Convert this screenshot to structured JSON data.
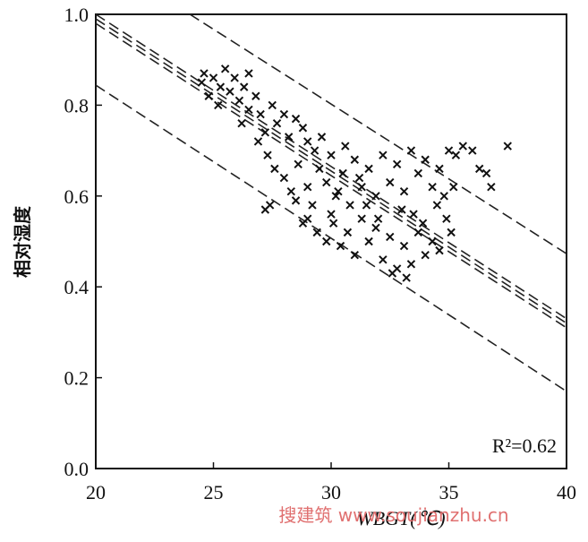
{
  "chart_data": {
    "type": "scatter",
    "xlabel": "WBGT(℃)",
    "ylabel": "相对湿度",
    "annotation": "R²=0.62",
    "watermark": "搜建筑 www.soujianzhu.cn",
    "marker": "x",
    "color": "#111111",
    "xlim": [
      20,
      40
    ],
    "xticks": [
      20,
      25,
      30,
      35,
      40
    ],
    "ylim": [
      0,
      1
    ],
    "yticks": [
      {
        "value": 0,
        "label": "0.0"
      },
      0.2,
      0.4,
      0.6,
      0.8,
      {
        "value": 1,
        "label": "1.0"
      }
    ],
    "x": [
      24.5,
      24.8,
      25.0,
      25.3,
      25.5,
      25.7,
      25.9,
      26.1,
      26.3,
      26.5,
      26.2,
      26.8,
      27.0,
      27.2,
      26.9,
      27.5,
      27.7,
      28.0,
      28.2,
      28.5,
      28.8,
      29.0,
      29.3,
      27.3,
      27.6,
      27.4,
      27.2,
      28.0,
      28.3,
      28.6,
      29.0,
      29.2,
      29.5,
      29.8,
      30.0,
      30.2,
      30.5,
      30.8,
      31.0,
      31.3,
      31.6,
      31.9,
      32.2,
      32.5,
      32.8,
      33.1,
      33.4,
      33.7,
      34.0,
      34.3,
      34.6,
      35.0,
      35.3,
      35.6,
      36.0,
      36.3,
      36.6,
      36.8,
      37.5,
      29.0,
      29.4,
      29.8,
      30.1,
      30.4,
      30.7,
      31.0,
      31.3,
      31.6,
      31.9,
      32.2,
      32.5,
      32.8,
      33.1,
      33.4,
      33.7,
      34.0,
      34.3,
      34.6,
      34.9,
      35.1,
      34.5,
      33.0,
      31.5,
      30.0,
      32.0,
      33.5,
      28.5,
      28.8,
      34.8,
      35.2,
      32.6,
      33.2,
      30.3,
      31.2,
      29.6,
      30.6,
      26.5,
      25.2,
      24.6,
      33.9
    ],
    "values": [
      0.85,
      0.82,
      0.86,
      0.84,
      0.88,
      0.83,
      0.86,
      0.81,
      0.84,
      0.79,
      0.76,
      0.82,
      0.78,
      0.74,
      0.72,
      0.8,
      0.76,
      0.78,
      0.73,
      0.77,
      0.75,
      0.72,
      0.7,
      0.69,
      0.66,
      0.58,
      0.57,
      0.64,
      0.61,
      0.67,
      0.62,
      0.58,
      0.66,
      0.63,
      0.69,
      0.6,
      0.65,
      0.58,
      0.68,
      0.62,
      0.66,
      0.6,
      0.69,
      0.63,
      0.67,
      0.61,
      0.7,
      0.65,
      0.68,
      0.62,
      0.66,
      0.7,
      0.69,
      0.71,
      0.7,
      0.66,
      0.65,
      0.62,
      0.71,
      0.55,
      0.52,
      0.5,
      0.54,
      0.49,
      0.52,
      0.47,
      0.55,
      0.5,
      0.53,
      0.46,
      0.51,
      0.44,
      0.49,
      0.45,
      0.52,
      0.47,
      0.5,
      0.48,
      0.55,
      0.52,
      0.58,
      0.57,
      0.58,
      0.56,
      0.55,
      0.56,
      0.59,
      0.54,
      0.6,
      0.62,
      0.43,
      0.42,
      0.61,
      0.64,
      0.73,
      0.71,
      0.87,
      0.8,
      0.87,
      0.54
    ],
    "lines": [
      {
        "x": [
          24,
          40
        ],
        "values": [
          1.0,
          0.473
        ]
      },
      {
        "x": [
          20,
          40
        ],
        "values": [
          1.0,
          0.33
        ]
      },
      {
        "x": [
          20,
          40
        ],
        "values": [
          0.99,
          0.32
        ]
      },
      {
        "x": [
          20,
          40
        ],
        "values": [
          0.98,
          0.31
        ]
      },
      {
        "x": [
          20,
          40
        ],
        "values": [
          0.844,
          0.17
        ]
      }
    ]
  }
}
